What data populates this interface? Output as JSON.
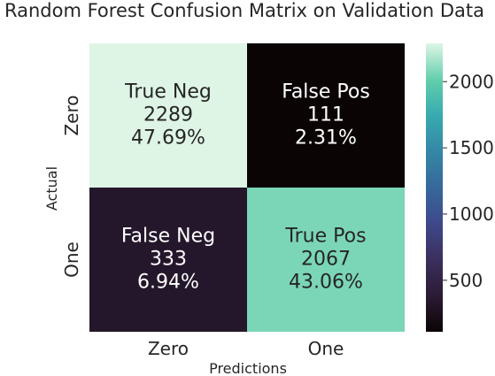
{
  "chart_data": {
    "type": "heatmap",
    "title": "Random Forest Confusion Matrix on Validation Data",
    "xlabel": "Predictions",
    "ylabel": "Actual",
    "x_categories": [
      "Zero",
      "One"
    ],
    "y_categories": [
      "Zero",
      "One"
    ],
    "cells": [
      {
        "row": 0,
        "col": 0,
        "name": "True Neg",
        "count": "2289",
        "percent": "47.69%",
        "value": 2289
      },
      {
        "row": 0,
        "col": 1,
        "name": "False Pos",
        "count": "111",
        "percent": "2.31%",
        "value": 111
      },
      {
        "row": 1,
        "col": 0,
        "name": "False Neg",
        "count": "333",
        "percent": "6.94%",
        "value": 333
      },
      {
        "row": 1,
        "col": 1,
        "name": "True Pos",
        "count": "2067",
        "percent": "43.06%",
        "value": 2067
      }
    ],
    "colorbar": {
      "colormap": "mako",
      "min": 111,
      "max": 2289,
      "ticks": [
        500,
        1000,
        1500,
        2000
      ],
      "tick_labels": [
        "500",
        "1000",
        "1500",
        "2000"
      ]
    },
    "grid": false
  }
}
